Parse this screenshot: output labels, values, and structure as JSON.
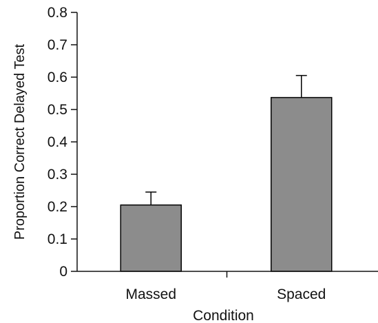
{
  "chart_data": {
    "type": "bar",
    "title": "",
    "xlabel": "Condition",
    "ylabel": "Proportion Correct Delayed Test",
    "categories": [
      "Massed",
      "Spaced"
    ],
    "values": [
      0.205,
      0.537
    ],
    "error_upper": [
      0.245,
      0.605
    ],
    "ylim": [
      0,
      0.8
    ],
    "yticks": [
      "0",
      "0.1",
      "0.2",
      "0.3",
      "0.4",
      "0.5",
      "0.6",
      "0.7",
      "0.8"
    ],
    "grid": false,
    "legend": "none",
    "bar_color": "#8c8c8c",
    "axis_color": "#111111"
  }
}
